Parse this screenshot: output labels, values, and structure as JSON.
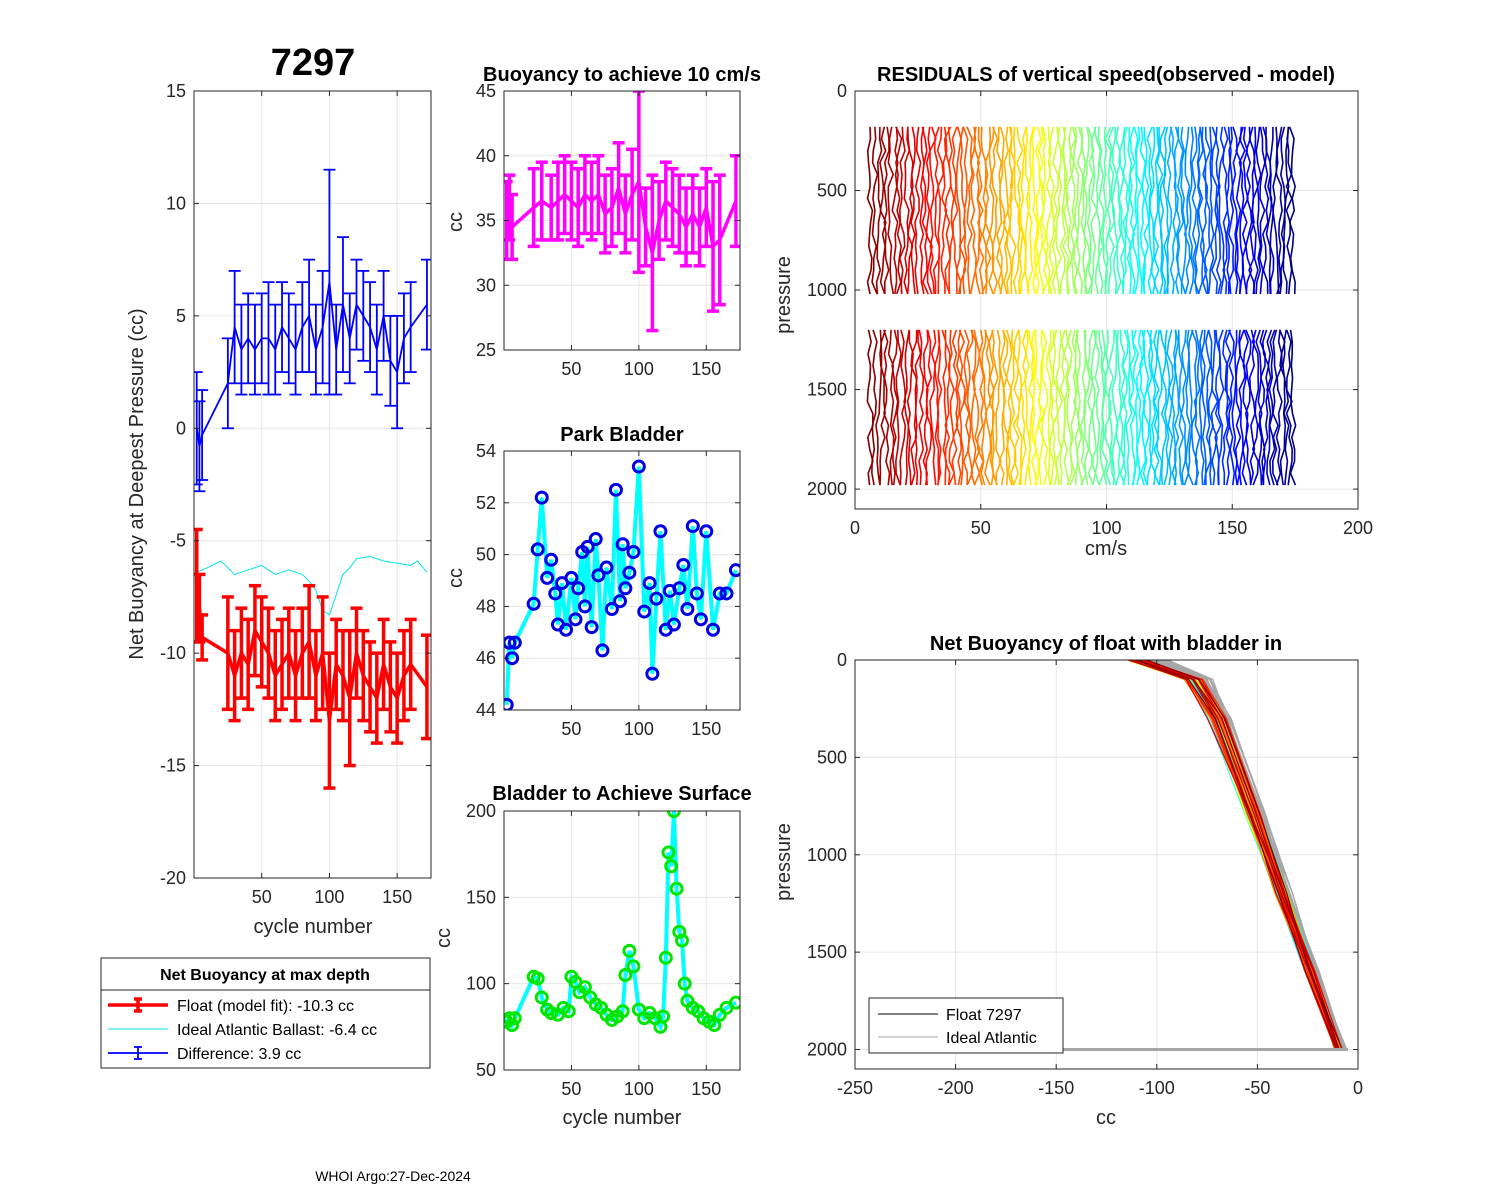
{
  "figure": {
    "float_id": "7297",
    "footer": "WHOI Argo:27-Dec-2024"
  },
  "chart_data": [
    {
      "id": "net_buoyancy",
      "type": "line",
      "title": "7297",
      "xlabel": "cycle number",
      "ylabel": "Net Buoyancy at Deepest Pressure (cc)",
      "xlim": [
        0,
        175
      ],
      "ylim": [
        -20,
        15
      ],
      "xticks": [
        50,
        100,
        150
      ],
      "yticks": [
        -20,
        -15,
        -10,
        -5,
        0,
        5,
        10,
        15
      ],
      "series": [
        {
          "name": "Float (model fit)",
          "color": "#ff0000",
          "style": "errorbar",
          "x": [
            2,
            4,
            6,
            25,
            30,
            35,
            40,
            45,
            50,
            55,
            60,
            65,
            70,
            75,
            80,
            85,
            90,
            95,
            100,
            105,
            110,
            115,
            120,
            125,
            130,
            135,
            140,
            145,
            150,
            155,
            160,
            172
          ],
          "y": [
            -7,
            -8,
            -9.3,
            -10,
            -11,
            -10,
            -10.5,
            -9,
            -9.5,
            -10,
            -11,
            -10.5,
            -10,
            -11,
            -10,
            -9.5,
            -11,
            -10,
            -13,
            -10.5,
            -11,
            -12,
            -10,
            -11,
            -11.5,
            -12,
            -10.5,
            -11.5,
            -12,
            -11,
            -10.5,
            -11.5
          ],
          "err": [
            2.5,
            1.5,
            1.0,
            2.5,
            2,
            2,
            2,
            2,
            2,
            2,
            2,
            2,
            2,
            2,
            2,
            2.5,
            2,
            2.5,
            3,
            2,
            2,
            3,
            2,
            2,
            2,
            2,
            2,
            2,
            2,
            2,
            2,
            2.3
          ]
        },
        {
          "name": "Ideal Atlantic Ballast",
          "color": "#00e6e6",
          "style": "line",
          "x": [
            2,
            10,
            20,
            30,
            40,
            50,
            60,
            70,
            80,
            85,
            90,
            95,
            100,
            110,
            115,
            120,
            130,
            140,
            150,
            160,
            165,
            172
          ],
          "y": [
            -6.4,
            -6.2,
            -5.9,
            -6.5,
            -6.3,
            -6.1,
            -6.5,
            -6.3,
            -6.5,
            -6.8,
            -7.2,
            -8.1,
            -8.3,
            -6.5,
            -6.2,
            -5.8,
            -5.7,
            -5.9,
            -6.0,
            -6.1,
            -5.9,
            -6.4
          ]
        },
        {
          "name": "Difference",
          "color": "#0000ff",
          "style": "errorbar",
          "x": [
            2,
            4,
            6,
            25,
            30,
            35,
            40,
            45,
            50,
            55,
            60,
            65,
            70,
            75,
            80,
            85,
            90,
            95,
            100,
            105,
            110,
            115,
            120,
            125,
            130,
            135,
            140,
            145,
            150,
            155,
            160,
            172
          ],
          "y": [
            0,
            -0.8,
            -0.3,
            2,
            4.5,
            3.5,
            4,
            3.5,
            4,
            4,
            3.5,
            4.5,
            4,
            3.5,
            4.5,
            5,
            3.5,
            4.5,
            6.5,
            3.5,
            5.5,
            4,
            5.5,
            5,
            4.5,
            3.5,
            5,
            3,
            2.5,
            4,
            4.5,
            5.5
          ],
          "err": [
            2.5,
            2,
            2,
            2,
            2.5,
            2,
            2,
            2,
            2,
            2.5,
            2,
            2,
            2,
            2,
            2,
            2.5,
            2,
            2.5,
            5,
            2,
            3,
            2,
            2,
            2,
            2,
            2,
            2,
            2,
            2.5,
            2,
            2,
            2
          ]
        }
      ],
      "legend": {
        "title": "Net Buoyancy at max depth",
        "entries": [
          {
            "label": "Float (model fit): -10.3 cc",
            "color": "#ff0000",
            "kind": "errorbar-thick"
          },
          {
            "label": "Ideal Atlantic Ballast:  -6.4 cc",
            "color": "#00e6e6",
            "kind": "line"
          },
          {
            "label": "Difference:   3.9 cc",
            "color": "#0000ff",
            "kind": "errorbar"
          }
        ]
      }
    },
    {
      "id": "buoyancy_10cms",
      "type": "line",
      "title": "Buoyancy to achieve 10 cm/s",
      "xlabel": "",
      "ylabel": "cc",
      "xlim": [
        0,
        175
      ],
      "ylim": [
        25,
        45
      ],
      "xticks": [
        50,
        100,
        150
      ],
      "yticks": [
        25,
        30,
        35,
        40,
        45
      ],
      "series": [
        {
          "name": "buoyancy",
          "color": "#ff00ff",
          "style": "errorbar",
          "x": [
            2,
            4,
            6,
            22,
            28,
            35,
            40,
            45,
            50,
            55,
            60,
            65,
            70,
            75,
            80,
            85,
            90,
            95,
            100,
            105,
            110,
            115,
            120,
            125,
            130,
            135,
            140,
            145,
            150,
            155,
            160,
            172
          ],
          "y": [
            35,
            36,
            34.5,
            36,
            36.5,
            36,
            36.5,
            37,
            36.5,
            36,
            37,
            36.5,
            37,
            35.5,
            36,
            37.5,
            35.5,
            37,
            38,
            34.5,
            32.5,
            35,
            36.5,
            36,
            35.5,
            34.5,
            35.5,
            34.5,
            36,
            33,
            33.5,
            36.5
          ],
          "err": [
            3,
            2.5,
            2.5,
            3,
            3,
            2.5,
            3,
            3,
            3,
            3,
            3,
            3,
            3,
            3,
            3,
            3.5,
            3,
            3.5,
            7,
            3,
            6,
            3,
            3,
            3,
            3,
            3,
            3,
            3,
            3,
            5,
            5,
            3.5
          ]
        }
      ]
    },
    {
      "id": "park_bladder",
      "type": "line",
      "title": "Park Bladder",
      "xlabel": "",
      "ylabel": "cc",
      "xlim": [
        0,
        175
      ],
      "ylim": [
        44,
        54
      ],
      "xticks": [
        50,
        100,
        150
      ],
      "yticks": [
        44,
        46,
        48,
        50,
        52,
        54
      ],
      "series": [
        {
          "name": "park bladder",
          "line_color": "#00ffff",
          "marker_color": "#0000e6",
          "x": [
            2,
            4,
            6,
            8,
            22,
            25,
            28,
            32,
            35,
            38,
            40,
            43,
            46,
            50,
            53,
            55,
            58,
            60,
            62,
            65,
            68,
            70,
            73,
            76,
            80,
            83,
            86,
            88,
            90,
            93,
            96,
            100,
            104,
            108,
            110,
            113,
            116,
            120,
            123,
            126,
            130,
            133,
            136,
            140,
            143,
            146,
            150,
            155,
            160,
            165,
            172
          ],
          "y": [
            44.2,
            46.6,
            46,
            46.6,
            48.1,
            50.2,
            52.2,
            49.1,
            49.8,
            48.5,
            47.3,
            48.9,
            47.1,
            49.1,
            47.5,
            48.7,
            50.1,
            48,
            50.3,
            47.2,
            50.6,
            49.2,
            46.3,
            49.5,
            47.9,
            52.5,
            48.2,
            50.4,
            48.7,
            49.3,
            50.1,
            53.4,
            47.8,
            48.9,
            45.4,
            48.3,
            50.9,
            47.1,
            48.6,
            47.3,
            48.7,
            49.6,
            47.9,
            51.1,
            48.5,
            47.5,
            50.9,
            47.1,
            48.5,
            48.5,
            49.4
          ]
        }
      ]
    },
    {
      "id": "bladder_surface",
      "type": "line",
      "title": "Bladder to Achieve Surface",
      "xlabel": "cycle number",
      "ylabel": "cc",
      "xlim": [
        0,
        175
      ],
      "ylim": [
        50,
        200
      ],
      "xticks": [
        50,
        100,
        150
      ],
      "yticks": [
        50,
        100,
        150,
        200
      ],
      "series": [
        {
          "name": "surface bladder",
          "line_color": "#00ffff",
          "marker_color": "#00e600",
          "x": [
            2,
            4,
            6,
            8,
            22,
            25,
            28,
            32,
            35,
            40,
            44,
            48,
            50,
            53,
            56,
            60,
            64,
            68,
            72,
            76,
            80,
            84,
            88,
            90,
            93,
            96,
            100,
            104,
            108,
            112,
            116,
            118,
            120,
            122,
            124,
            126,
            128,
            130,
            132,
            134,
            136,
            140,
            144,
            148,
            152,
            156,
            160,
            165,
            172
          ],
          "y": [
            78,
            80,
            76,
            80,
            104,
            103,
            92,
            85,
            83,
            82,
            86,
            84,
            104,
            101,
            95,
            98,
            92,
            88,
            86,
            82,
            79,
            81,
            84,
            105,
            119,
            110,
            85,
            80,
            83,
            80,
            75,
            81,
            115,
            176,
            168,
            200,
            155,
            130,
            125,
            100,
            90,
            86,
            84,
            80,
            78,
            76,
            82,
            86,
            89
          ]
        }
      ]
    },
    {
      "id": "residuals",
      "type": "line",
      "title": "RESIDUALS of vertical speed(observed - model)",
      "xlabel": "cm/s",
      "ylabel": "pressure",
      "xlim": [
        0,
        200
      ],
      "ylim": [
        0,
        2100
      ],
      "y_reversed": true,
      "xticks": [
        0,
        50,
        100,
        150,
        200
      ],
      "yticks": [
        0,
        500,
        1000,
        1500,
        2000
      ],
      "profile_count": 120,
      "offset_range": [
        6,
        174
      ],
      "pressure_segments": [
        [
          180,
          1020
        ],
        [
          1200,
          2000
        ]
      ],
      "colormap": "jet"
    },
    {
      "id": "net_buoyancy_profile",
      "type": "line",
      "title": "Net Buoyancy of float with bladder in",
      "xlabel": "cc",
      "ylabel": "pressure",
      "xlim": [
        -250,
        0
      ],
      "ylim": [
        0,
        2100
      ],
      "y_reversed": true,
      "xticks": [
        -250,
        -200,
        -150,
        -100,
        -50,
        0
      ],
      "yticks": [
        0,
        500,
        1000,
        1500,
        2000
      ],
      "float_profile": {
        "pressure": [
          0,
          100,
          300,
          800,
          1200,
          1600,
          2000
        ],
        "cc": [
          -110,
          -82,
          -70,
          -52,
          -38,
          -24,
          -10
        ]
      },
      "ideal_profile": {
        "pressure": [
          0,
          100,
          300,
          800,
          1200,
          1600,
          2000
        ],
        "cc": [
          -100,
          -78,
          -68,
          -50,
          -36,
          -22,
          -8
        ]
      },
      "legend": {
        "entries": [
          {
            "label": "Float 7297",
            "color": "#000000"
          },
          {
            "label": "Ideal Atlantic",
            "color": "#a6a6a6"
          }
        ]
      }
    }
  ]
}
